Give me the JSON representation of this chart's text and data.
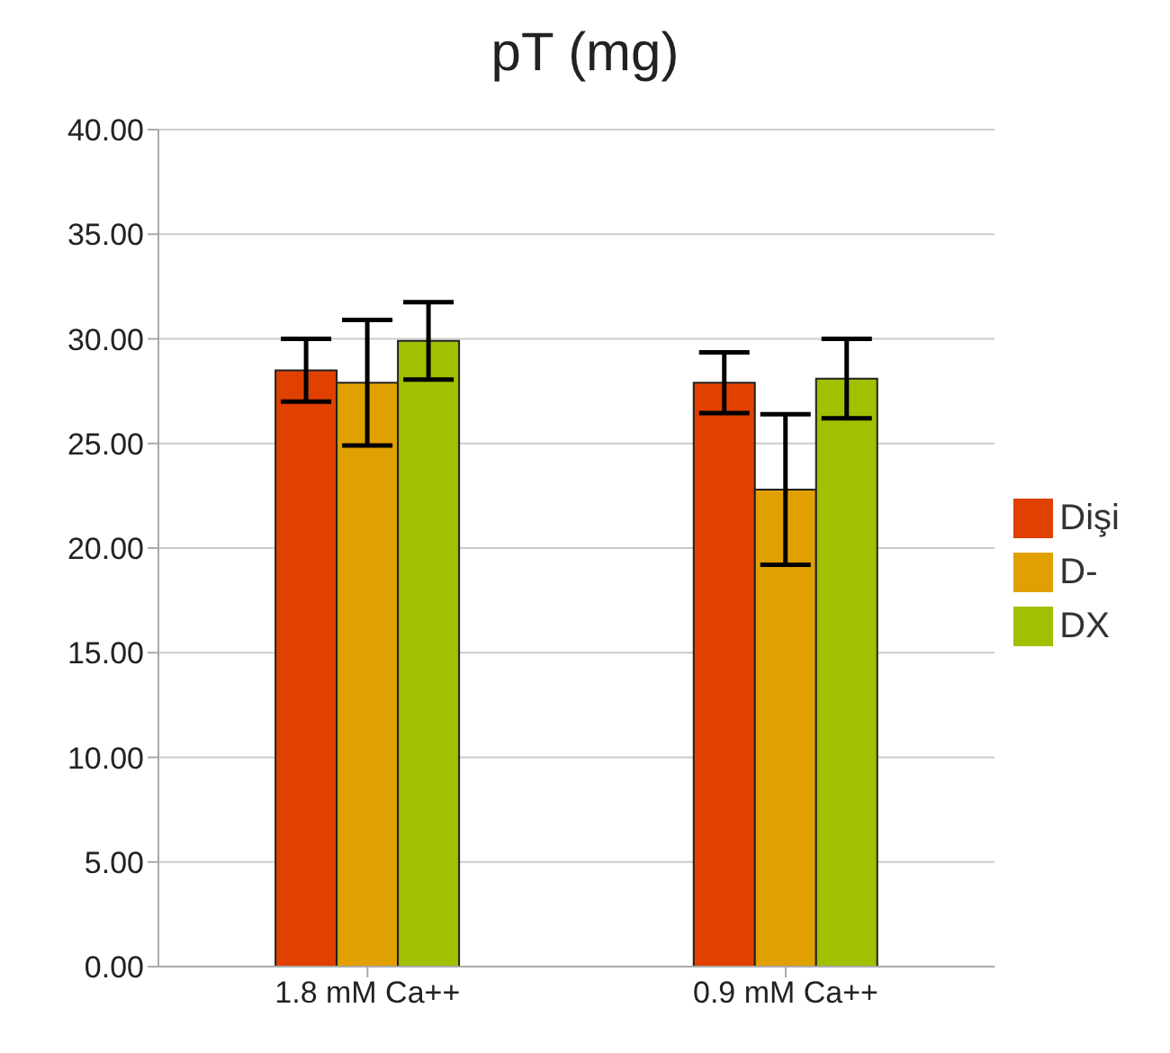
{
  "chart_data": {
    "type": "bar",
    "title": "pT (mg)",
    "categories": [
      "1.8 mM Ca++",
      "0.9 mM Ca++"
    ],
    "series": [
      {
        "name": "Dişi",
        "color": "#e04000",
        "values": [
          28.5,
          27.9
        ],
        "errors": [
          1.5,
          1.45
        ]
      },
      {
        "name": "D-",
        "color": "#e0a000",
        "values": [
          27.9,
          22.8
        ],
        "errors": [
          3.0,
          3.6
        ]
      },
      {
        "name": "DX",
        "color": "#a0c000",
        "values": [
          29.9,
          28.1
        ],
        "errors": [
          1.85,
          1.9
        ]
      }
    ],
    "ylim": [
      0,
      40
    ],
    "yticks": [
      {
        "value": 0,
        "label": "0.00"
      },
      {
        "value": 5,
        "label": "5.00"
      },
      {
        "value": 10,
        "label": "10.00"
      },
      {
        "value": 15,
        "label": "15.00"
      },
      {
        "value": 20,
        "label": "20.00"
      },
      {
        "value": 25,
        "label": "25.00"
      },
      {
        "value": 30,
        "label": "30.00"
      },
      {
        "value": 35,
        "label": "35.00"
      },
      {
        "value": 40,
        "label": "40.00"
      }
    ],
    "grid": "y",
    "legend": "right"
  }
}
